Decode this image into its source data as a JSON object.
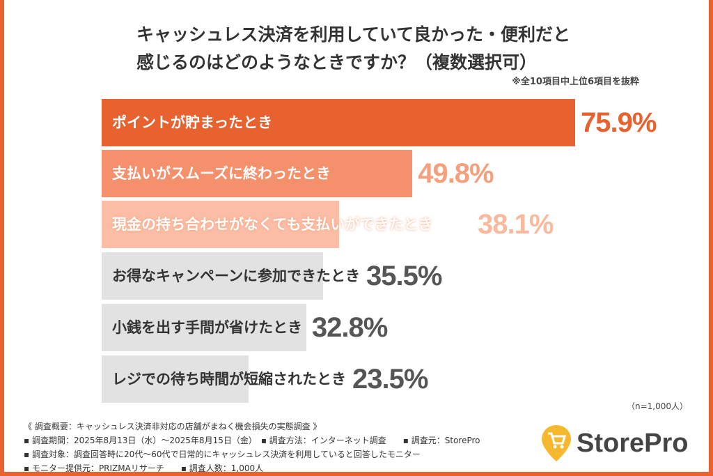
{
  "chart_data": {
    "type": "bar",
    "orientation": "horizontal",
    "title": "キャッシュレス決済を利用していて良かった・便利だと感じるのはどのようなときですか？（複数選択可）",
    "title_lines": [
      "キャッシュレス決済を利用していて良かった・便利だと",
      "感じるのはどのようなときですか？（複数選択可）"
    ],
    "note": "※全10項目中上位6項目を抜粋",
    "categories": [
      "ポイントが貯まったとき",
      "支払いがスムーズに終わったとき",
      "現金の持ち合わせがなくても支払いができたとき",
      "お得なキャンペーンに参加できたとき",
      "小銭を出す手間が省けたとき",
      "レジでの待ち時間が短縮されたとき"
    ],
    "values": [
      75.9,
      49.8,
      38.1,
      35.5,
      32.8,
      23.5
    ],
    "value_labels": [
      "75.9%",
      "49.8%",
      "38.1%",
      "35.5%",
      "32.8%",
      "23.5%"
    ],
    "unit": "%",
    "bar_colors": [
      "#e8622f",
      "#f5906c",
      "#fbbda5",
      "#e2e2e2",
      "#e2e2e2",
      "#e2e2e2"
    ],
    "label_colors": [
      "#ffffff",
      "#ffffff",
      "#ffffff",
      "#333333",
      "#333333",
      "#333333"
    ],
    "value_colors": [
      "#e8622f",
      "#f4a07c",
      "#f9b99e",
      "#555555",
      "#555555",
      "#555555"
    ],
    "grid": false,
    "sample": "（n=1,000人）"
  },
  "footer": {
    "lines": [
      "《 調査概要：キャッシュレス決済非対応の店舗がまねく機会損失の実態調査 》",
      "▪ 調査期間：2025年8月13日（水）～2025年8月15日（金）　▪ 調査方法：インターネット調査　　▪ 調査元：StorePro",
      "▪ 調査対象：調査回答時に20代～60代で日常的にキャッシュレス決済を利用していると回答したモニター",
      "▪ モニター提供元：PRIZMAリサーチ　　▪ 調査人数：1,000人"
    ]
  },
  "logo": {
    "text": "StorePro",
    "color": "#f5b82e"
  }
}
